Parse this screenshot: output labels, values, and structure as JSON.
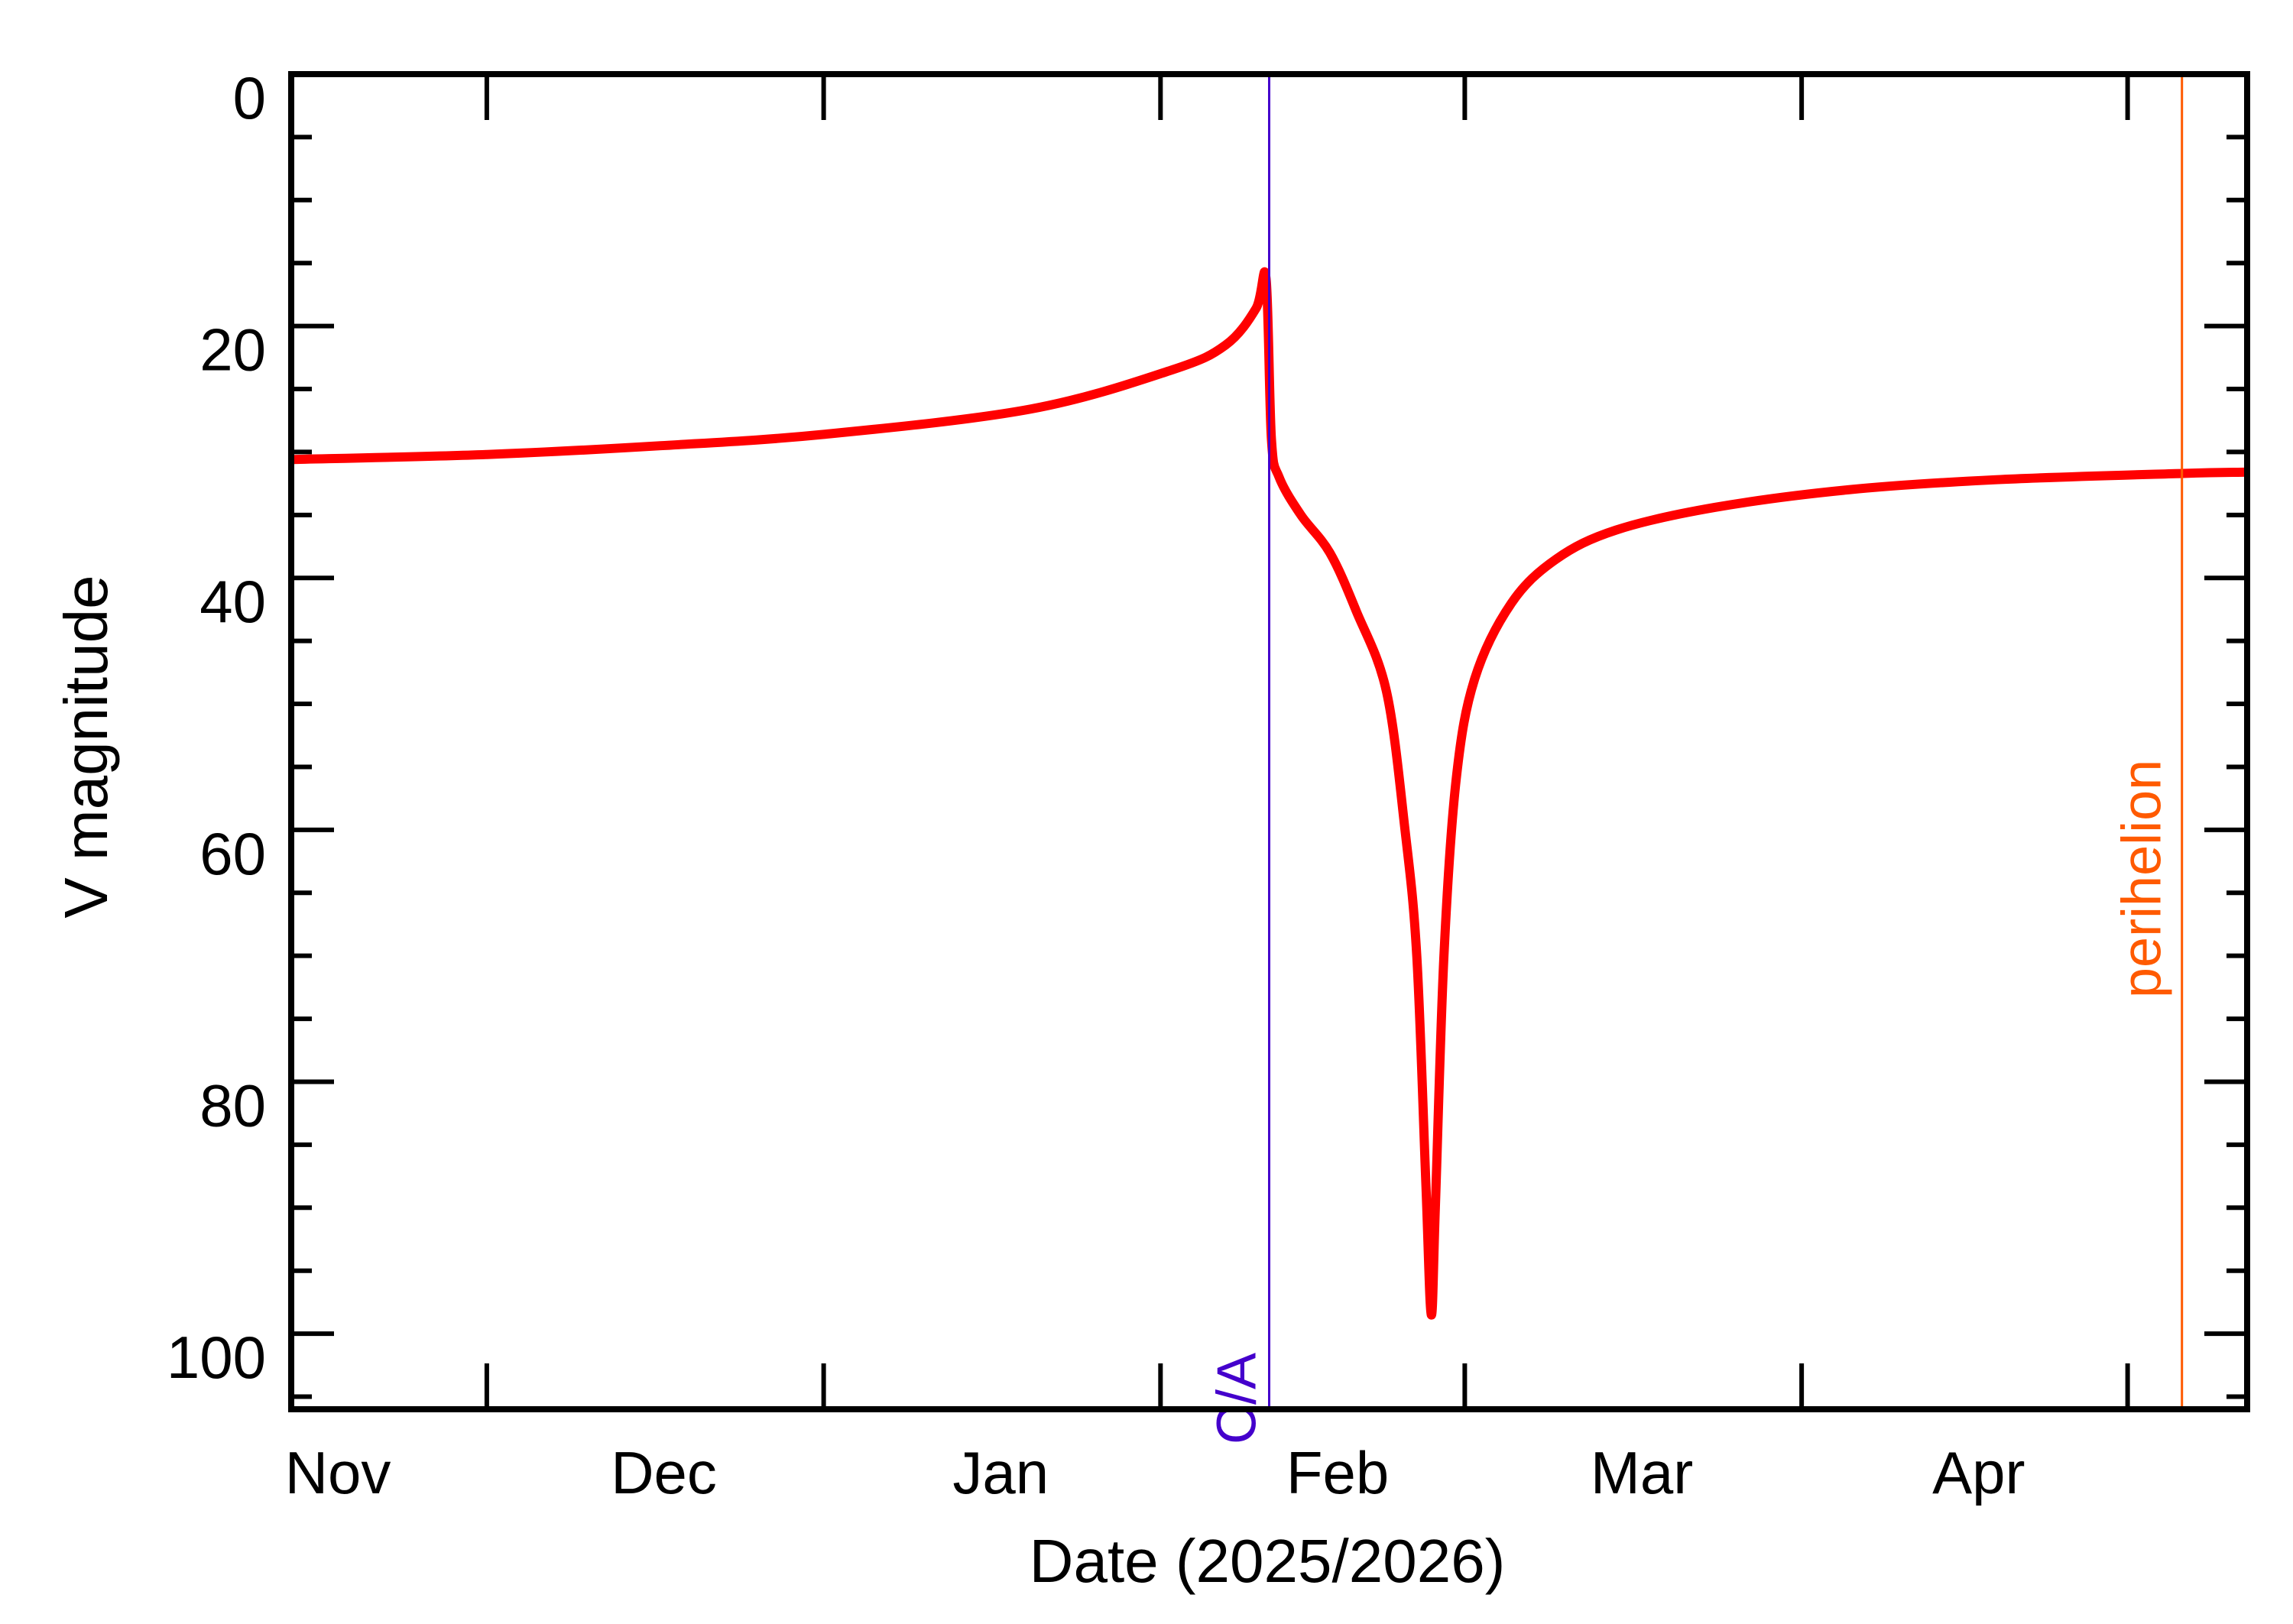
{
  "chart_data": {
    "type": "line",
    "title": "",
    "xlabel": "Date (2025/2026)",
    "ylabel": "V magnitude",
    "xlim": [
      "2025-10-27",
      "2026-04-25"
    ],
    "ylim": [
      0,
      106
    ],
    "y_inverted": true,
    "grid": false,
    "y_ticks": [
      0,
      20,
      40,
      60,
      80,
      100
    ],
    "y_tick_labels": [
      "0",
      "20",
      "40",
      "60",
      "80",
      "100"
    ],
    "y_minor_step": 5,
    "x_major_ticks": [
      "2025-11-14",
      "2025-12-15",
      "2026-01-15",
      "2026-02-12",
      "2026-03-15",
      "2026-04-14"
    ],
    "x_tick_labels": [
      {
        "label": "Nov",
        "date": "2025-11-01"
      },
      {
        "label": "Dec",
        "date": "2025-12-01"
      },
      {
        "label": "Jan",
        "date": "2026-01-01"
      },
      {
        "label": "Feb",
        "date": "2026-02-01"
      },
      {
        "label": "Mar",
        "date": "2026-03-01"
      },
      {
        "label": "Apr",
        "date": "2026-04-01"
      }
    ],
    "series": [
      {
        "color": "#ff0000",
        "x": [
          "2025-10-27T00:00",
          "2025-11-14T00:00",
          "2025-11-30T00:00",
          "2025-12-15T00:00",
          "2026-01-03T00:00",
          "2026-01-16T00:00",
          "2026-01-21T00:00",
          "2026-01-23T19:00",
          "2026-01-24T17:00",
          "2026-01-25T05:00",
          "2026-01-25T22:00",
          "2026-01-27T22:00",
          "2026-01-30T14:00",
          "2026-02-02T00:00",
          "2026-02-04T19:00",
          "2026-02-06T12:00",
          "2026-02-07T14:00",
          "2026-02-08T10:00",
          "2026-02-08T22:00",
          "2026-02-09T07:00",
          "2026-02-10T02:00",
          "2026-02-11T05:00",
          "2026-02-12T22:00",
          "2026-02-16T07:00",
          "2026-02-20T10:00",
          "2026-02-25T22:00",
          "2026-03-07T00:00",
          "2026-03-19T07:00",
          "2026-04-01T22:00",
          "2026-04-19T02:00",
          "2026-04-25T00:00"
        ],
        "y": [
          30.6,
          30.2,
          29.5,
          28.6,
          26.6,
          23.5,
          21.5,
          18.6,
          16.2,
          29.0,
          32.0,
          35.0,
          38.0,
          42.6,
          49.0,
          60.0,
          70.0,
          88.0,
          98.5,
          90.0,
          70.0,
          56.0,
          48.0,
          42.0,
          38.5,
          36.2,
          34.4,
          33.0,
          32.2,
          31.7,
          31.6
        ]
      }
    ],
    "annotations": [
      {
        "label": "C/A",
        "date": "2026-01-25T00:00",
        "color": "#4400cc"
      },
      {
        "label": "perihelion",
        "date": "2026-04-19T00:00",
        "color": "#ff5a00"
      }
    ]
  }
}
